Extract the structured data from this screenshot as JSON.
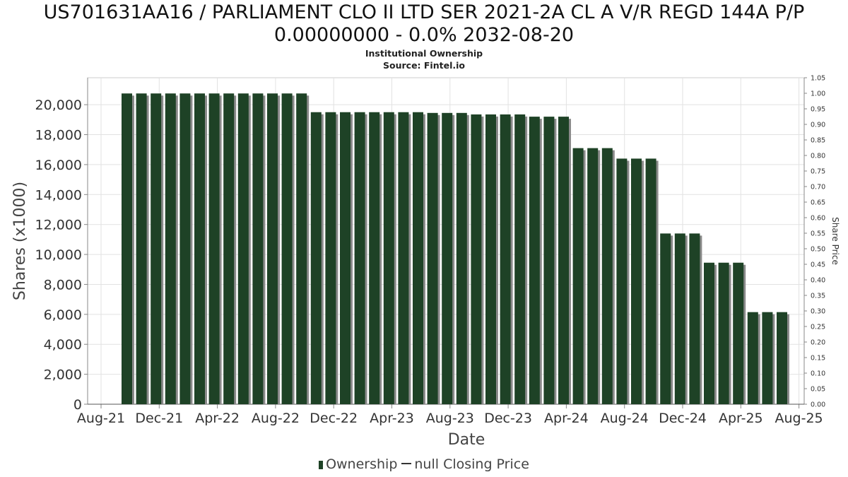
{
  "title_line1": "US701631AA16 / PARLIAMENT CLO II LTD SER 2021-2A CL A V/R REGD 144A P/P",
  "title_line2": "0.00000000 - 0.0% 2032-08-20",
  "subtitle_line1": "Institutional Ownership",
  "subtitle_line2": "Source: Fintel.io",
  "legend": {
    "ownership": "Ownership",
    "price": "null Closing Price"
  },
  "colors": {
    "bar": "#1e4226",
    "bar_shadow": "#8a8a8a",
    "grid": "#e2e2e2",
    "axis": "#888888"
  },
  "chart_data": {
    "type": "bar",
    "xlabel": "Date",
    "ylabel": "Shares (x1000)",
    "y2label": "Share Price",
    "ylim": [
      0,
      21800
    ],
    "y2lim": [
      0,
      1.05
    ],
    "yticks": [
      0,
      2000,
      4000,
      6000,
      8000,
      10000,
      12000,
      14000,
      16000,
      18000,
      20000
    ],
    "ytick_labels": [
      "0",
      "2,000",
      "4,000",
      "6,000",
      "8,000",
      "10,000",
      "12,000",
      "14,000",
      "16,000",
      "18,000",
      "20,000"
    ],
    "y2ticks": [
      "0.00",
      "0.05",
      "0.10",
      "0.15",
      "0.20",
      "0.25",
      "0.30",
      "0.35",
      "0.40",
      "0.45",
      "0.50",
      "0.55",
      "0.60",
      "0.65",
      "0.70",
      "0.75",
      "0.80",
      "0.85",
      "0.90",
      "0.95",
      "1.00",
      "1.05"
    ],
    "xticks": [
      "Aug-21",
      "Dec-21",
      "Apr-22",
      "Aug-22",
      "Dec-22",
      "Apr-23",
      "Aug-23",
      "Dec-23",
      "Apr-24",
      "Aug-24",
      "Dec-24",
      "Apr-25",
      "Aug-25"
    ],
    "grid": true,
    "legend_position": "bottom",
    "series": [
      {
        "name": "Ownership",
        "values": [
          20750,
          20750,
          20750,
          20750,
          20750,
          20750,
          20750,
          20750,
          20750,
          20750,
          20750,
          20750,
          20750,
          19500,
          19500,
          19500,
          19500,
          19500,
          19500,
          19500,
          19500,
          19450,
          19450,
          19450,
          19350,
          19350,
          19350,
          19350,
          19200,
          19200,
          19200,
          17100,
          17100,
          17100,
          16400,
          16400,
          16400,
          11400,
          11400,
          11400,
          9450,
          9450,
          9450,
          6150,
          6150,
          6150
        ]
      }
    ]
  }
}
